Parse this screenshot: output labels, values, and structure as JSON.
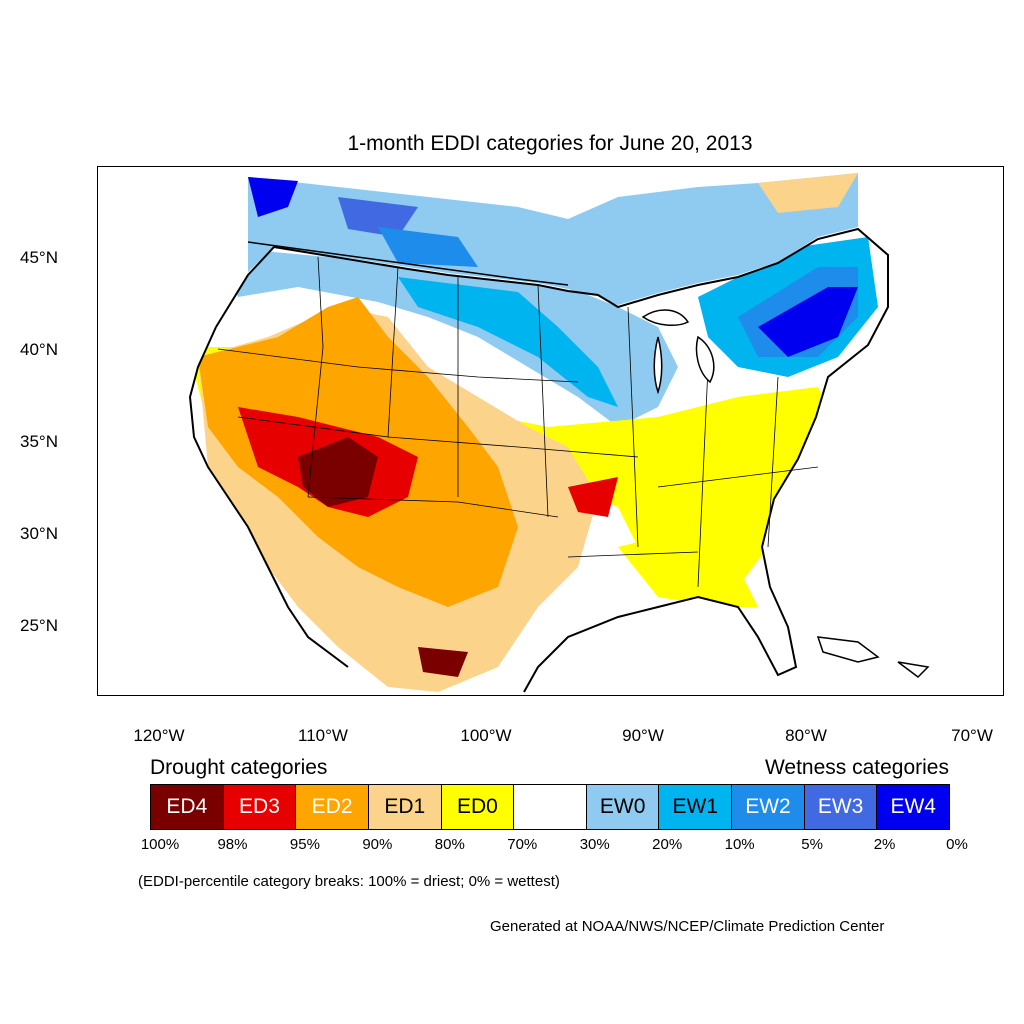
{
  "title": "1-month EDDI categories for June 20, 2013",
  "lat_labels": [
    "45°N",
    "40°N",
    "35°N",
    "30°N",
    "25°N"
  ],
  "lon_labels": [
    "120°W",
    "110°W",
    "100°W",
    "90°W",
    "80°W",
    "70°W"
  ],
  "legend": {
    "drought_heading": "Drought categories",
    "wetness_heading": "Wetness categories",
    "categories": [
      {
        "label": "ED4",
        "color": "#7a0000",
        "text_color": "#ffffff"
      },
      {
        "label": "ED3",
        "color": "#e60000",
        "text_color": "#ffffff"
      },
      {
        "label": "ED2",
        "color": "#ffa500",
        "text_color": "#ffffff"
      },
      {
        "label": "ED1",
        "color": "#fcd38a",
        "text_color": "#000000"
      },
      {
        "label": "ED0",
        "color": "#ffff00",
        "text_color": "#000000"
      },
      {
        "label": "",
        "color": "#ffffff",
        "text_color": "#000000"
      },
      {
        "label": "EW0",
        "color": "#8fcaf0",
        "text_color": "#000000"
      },
      {
        "label": "EW1",
        "color": "#00b4f0",
        "text_color": "#000000"
      },
      {
        "label": "EW2",
        "color": "#1e8ceb",
        "text_color": "#ffffff"
      },
      {
        "label": "EW3",
        "color": "#4169e1",
        "text_color": "#ffffff"
      },
      {
        "label": "EW4",
        "color": "#0000f0",
        "text_color": "#ffffff"
      }
    ],
    "percentiles": [
      "100%",
      "98%",
      "95%",
      "90%",
      "80%",
      "70%",
      "30%",
      "20%",
      "10%",
      "5%",
      "2%",
      "0%"
    ]
  },
  "note": "(EDDI-percentile category breaks: 100% = driest; 0% = wettest)",
  "credit": "Generated at NOAA/NWS/NCEP/Climate Prediction Center"
}
